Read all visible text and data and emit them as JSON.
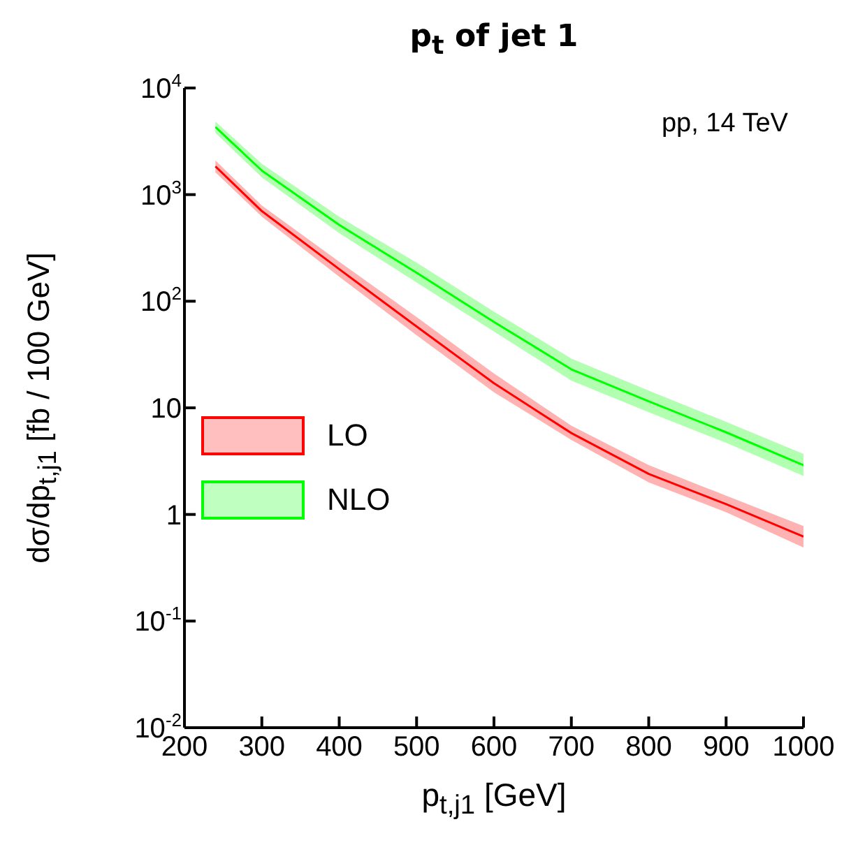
{
  "chart_data": {
    "type": "line",
    "title": "p$_{t}$ of jet 1",
    "xlabel": "p$_{t,j1}$ [GeV]",
    "ylabel": "dσ/dp$_{t,j1}$ [fb / 100 GeV]",
    "annotations": [
      "pp, 14 TeV"
    ],
    "x": [
      240,
      300,
      400,
      500,
      600,
      700,
      800,
      900,
      1000
    ],
    "series": [
      {
        "name": "LO",
        "color": "#ff0000",
        "values": [
          1840,
          700,
          200,
          58,
          17,
          5.8,
          2.4,
          1.25,
          0.62
        ],
        "lower": [
          1620,
          620,
          170,
          48,
          14,
          5.0,
          2.0,
          1.05,
          0.49
        ],
        "upper": [
          2090,
          790,
          235,
          71,
          21,
          6.8,
          2.9,
          1.5,
          0.78
        ]
      },
      {
        "name": "NLO",
        "color": "#00ff00",
        "values": [
          4300,
          1680,
          520,
          185,
          64,
          23,
          11.5,
          5.9,
          2.9
        ],
        "lower": [
          3800,
          1450,
          435,
          150,
          52,
          18,
          9.1,
          4.7,
          2.3
        ],
        "upper": [
          4840,
          1950,
          620,
          230,
          80,
          29,
          14.5,
          7.4,
          3.7
        ]
      }
    ],
    "xlim": [
      200,
      1000
    ],
    "xticks": [
      200,
      300,
      400,
      500,
      600,
      700,
      800,
      900,
      1000
    ],
    "ylim": [
      0.01,
      10000
    ],
    "yticks": [
      {
        "value": 0.01,
        "label": "10$^{-2}$"
      },
      {
        "value": 0.1,
        "label": "10$^{-1}$"
      },
      1,
      10,
      {
        "value": 100,
        "label": "10$^{2}$"
      },
      {
        "value": 1000,
        "label": "10$^{3}$"
      },
      {
        "value": 10000,
        "label": "10$^{4}$"
      }
    ],
    "log": true,
    "grid": false,
    "legend": "left",
    "marker": "none",
    "line_style": "solid"
  }
}
